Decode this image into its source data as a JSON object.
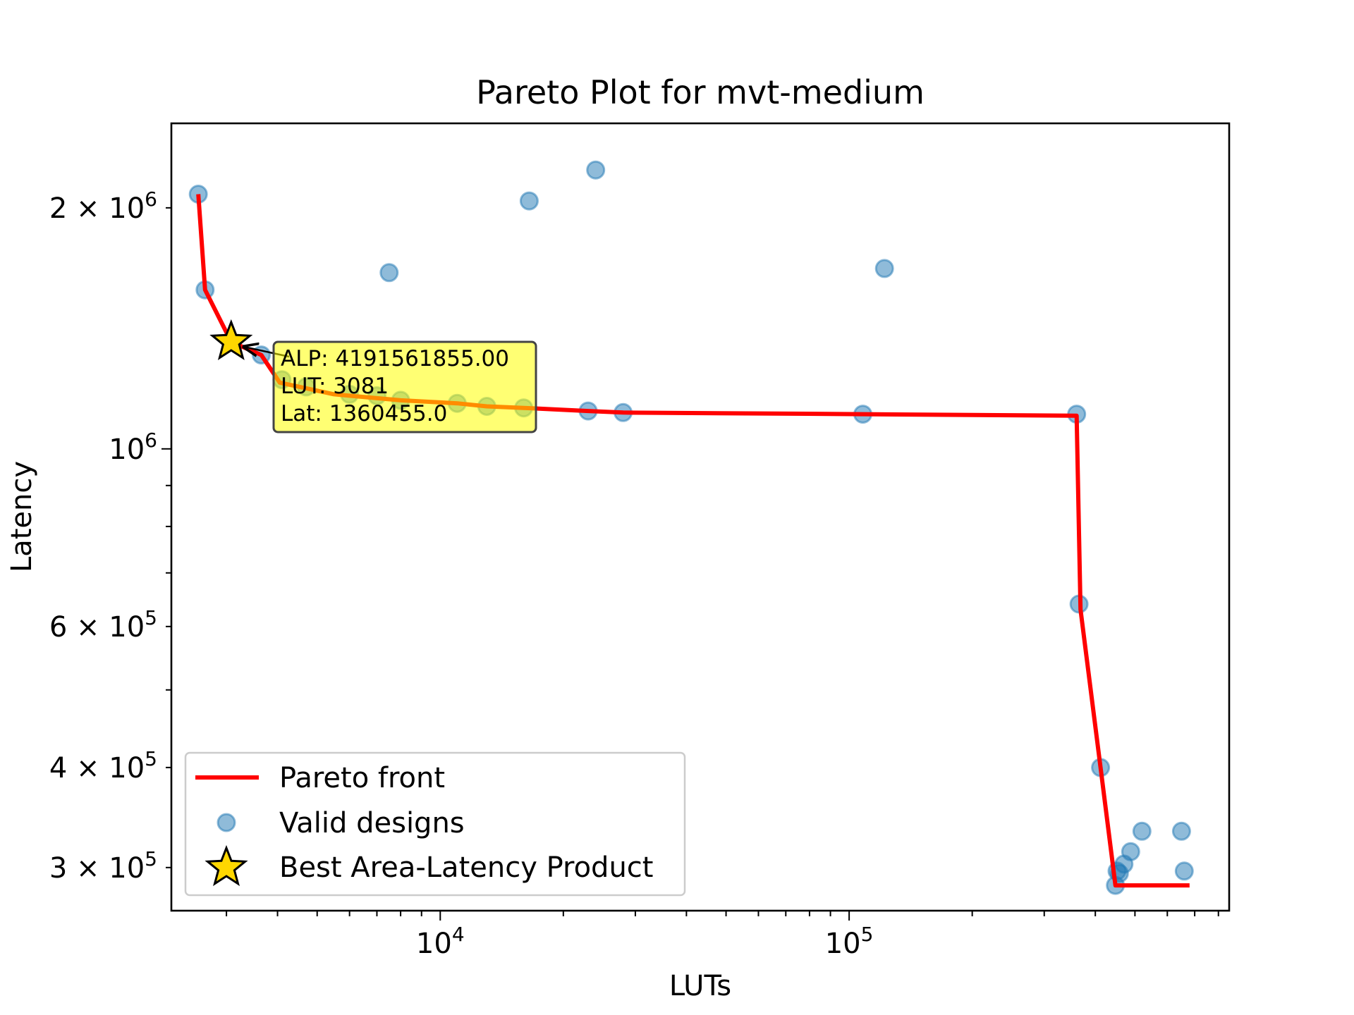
{
  "chart_data": {
    "type": "scatter",
    "title": "Pareto Plot for mvt-medium",
    "xlabel": "LUTs",
    "ylabel": "Latency",
    "xscale": "log",
    "yscale": "log",
    "xlim": [
      2200,
      850000
    ],
    "ylim": [
      265000,
      2550000
    ],
    "x_tick_labels": [
      {
        "base": "10",
        "exp": "4",
        "value": 10000
      },
      {
        "base": "10",
        "exp": "5",
        "value": 100000
      }
    ],
    "y_tick_labels": [
      {
        "base": "2 × 10",
        "exp": "6",
        "value": 2000000
      },
      {
        "base": "10",
        "exp": "6",
        "value": 1000000
      },
      {
        "base": "6 × 10",
        "exp": "5",
        "value": 600000
      },
      {
        "base": "4 × 10",
        "exp": "5",
        "value": 400000
      },
      {
        "base": "3 × 10",
        "exp": "5",
        "value": 300000
      }
    ],
    "series": [
      {
        "name": "Pareto front",
        "type": "line",
        "color": "#ff0000",
        "x": [
          2560,
          2660,
          3081,
          3650,
          4050,
          5500,
          8000,
          11000,
          13000,
          16000,
          23000,
          28000,
          108000,
          355000,
          360000,
          368000,
          412000,
          448000,
          680000
        ],
        "y": [
          2080000,
          1580000,
          1360455,
          1310000,
          1210000,
          1170000,
          1150000,
          1140000,
          1130000,
          1125000,
          1115000,
          1110000,
          1105000,
          1100000,
          1100000,
          630000,
          400000,
          285000,
          285000
        ]
      },
      {
        "name": "Valid designs",
        "type": "scatter",
        "color": "#1f77b4",
        "x": [
          2560,
          2660,
          3081,
          3650,
          4100,
          4700,
          6000,
          7000,
          7500,
          8000,
          11000,
          13000,
          16000,
          16500,
          23000,
          24000,
          28000,
          108000,
          122000,
          360000,
          365000,
          412000,
          448000,
          452000,
          458000,
          470000,
          488000,
          520000,
          650000,
          660000
        ],
        "y": [
          2080000,
          1580000,
          1360455,
          1310000,
          1220000,
          1195000,
          1170000,
          1165000,
          1660000,
          1150000,
          1140000,
          1130000,
          1125000,
          2040000,
          1115000,
          2230000,
          1110000,
          1105000,
          1680000,
          1105000,
          640000,
          400000,
          285000,
          297000,
          295000,
          303000,
          314000,
          333000,
          333000,
          297000
        ]
      }
    ],
    "best_point": {
      "name": "Best Area-Latency Product",
      "x": 3081,
      "y": 1360455,
      "color": "#ffd700"
    },
    "annotation": {
      "lines": [
        "ALP: 4191561855.00",
        "LUT: 3081",
        "Lat: 1360455.0"
      ],
      "background": "#ffff00"
    },
    "legend": {
      "placement": "lower-left",
      "entries": [
        "Pareto front",
        "Valid designs",
        "Best Area-Latency Product"
      ]
    },
    "grid": false
  }
}
